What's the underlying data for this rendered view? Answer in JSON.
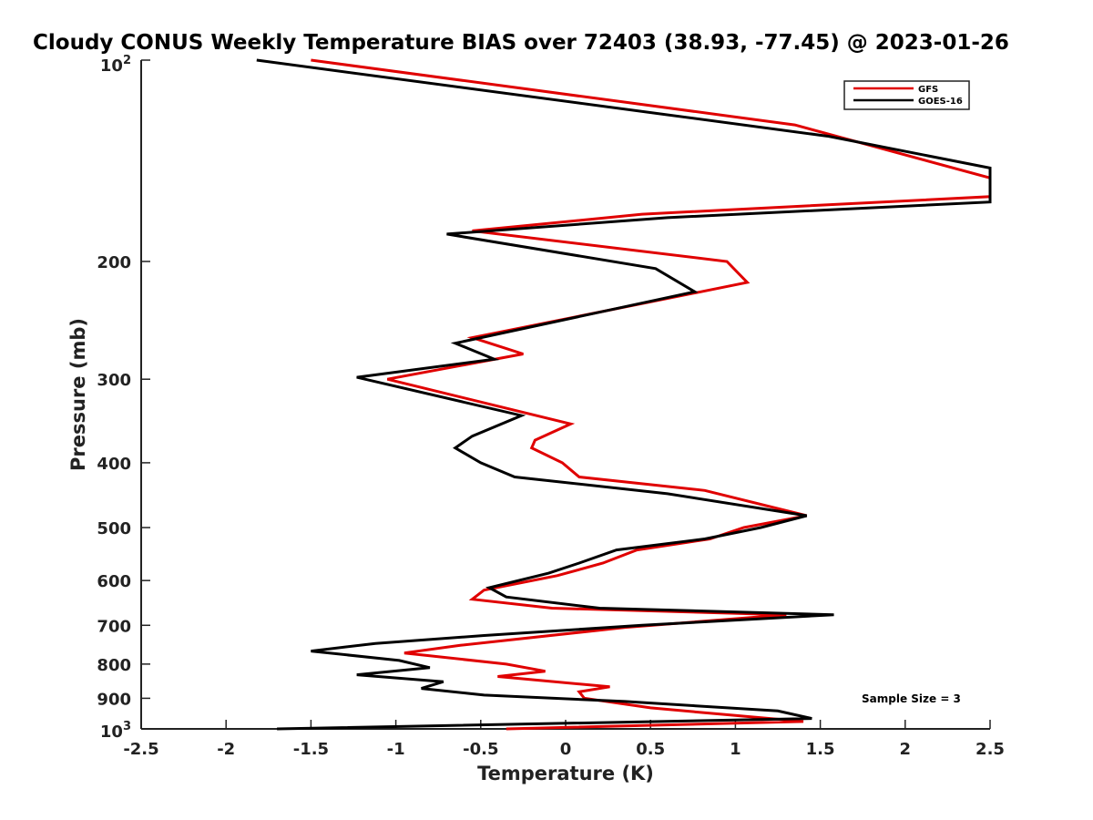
{
  "chart_data": {
    "type": "line",
    "title": "Cloudy CONUS Weekly Temperature BIAS over 72403 (38.93, -77.45) @ 2023-01-26",
    "xlabel": "Temperature (K)",
    "ylabel": "Pressure (mb)",
    "xlim": [
      -2.5,
      2.5
    ],
    "ylim": [
      100,
      1000
    ],
    "y_scale": "log",
    "y_reversed": true,
    "x_ticks": [
      "-2.5",
      "-2",
      "-1.5",
      "-1",
      "-0.5",
      "0",
      "0.5",
      "1",
      "1.5",
      "2",
      "2.5"
    ],
    "y_ticks": [
      {
        "value": 200,
        "label": "200"
      },
      {
        "value": 300,
        "label": "300"
      },
      {
        "value": 400,
        "label": "400"
      },
      {
        "value": 500,
        "label": "500"
      },
      {
        "value": 600,
        "label": "600"
      },
      {
        "value": 700,
        "label": "700"
      },
      {
        "value": 800,
        "label": "800"
      },
      {
        "value": 900,
        "label": "900"
      }
    ],
    "y_tick_top": {
      "base": "10",
      "exp": "2"
    },
    "y_tick_bottom": {
      "base": "10",
      "exp": "3"
    },
    "grid": false,
    "legend_position": "top-right",
    "annotation": "Sample Size = 3",
    "series": [
      {
        "name": "GFS",
        "color": "#e00000",
        "points": [
          [
            -1.5,
            100
          ],
          [
            1.35,
            125
          ],
          [
            2.5,
            150
          ],
          [
            2.5,
            160
          ],
          [
            0.45,
            170
          ],
          [
            -0.55,
            180
          ],
          [
            0.95,
            200
          ],
          [
            1.07,
            215
          ],
          [
            -0.55,
            260
          ],
          [
            -0.25,
            275
          ],
          [
            -1.05,
            300
          ],
          [
            0.03,
            350
          ],
          [
            -0.18,
            370
          ],
          [
            -0.2,
            380
          ],
          [
            -0.02,
            400
          ],
          [
            0.08,
            420
          ],
          [
            0.82,
            440
          ],
          [
            1.42,
            480
          ],
          [
            1.05,
            500
          ],
          [
            0.85,
            520
          ],
          [
            0.42,
            540
          ],
          [
            0.22,
            565
          ],
          [
            -0.05,
            590
          ],
          [
            -0.48,
            620
          ],
          [
            -0.55,
            640
          ],
          [
            -0.08,
            660
          ],
          [
            1.3,
            675
          ],
          [
            0.35,
            705
          ],
          [
            -0.62,
            750
          ],
          [
            -0.95,
            770
          ],
          [
            -0.35,
            800
          ],
          [
            -0.12,
            820
          ],
          [
            -0.4,
            835
          ],
          [
            0.26,
            865
          ],
          [
            0.08,
            880
          ],
          [
            0.11,
            900
          ],
          [
            0.5,
            930
          ],
          [
            1.0,
            955
          ],
          [
            1.4,
            975
          ],
          [
            -0.35,
            1000
          ]
        ]
      },
      {
        "name": "GOES-16",
        "color": "#000000",
        "points": [
          [
            -1.82,
            100
          ],
          [
            1.55,
            130
          ],
          [
            2.5,
            145
          ],
          [
            2.5,
            163
          ],
          [
            0.6,
            172
          ],
          [
            -0.7,
            182
          ],
          [
            0.53,
            205
          ],
          [
            0.76,
            222
          ],
          [
            -0.65,
            265
          ],
          [
            -0.42,
            280
          ],
          [
            -1.23,
            298
          ],
          [
            -0.26,
            340
          ],
          [
            -0.55,
            365
          ],
          [
            -0.65,
            380
          ],
          [
            -0.5,
            400
          ],
          [
            -0.3,
            420
          ],
          [
            0.6,
            445
          ],
          [
            1.42,
            480
          ],
          [
            1.15,
            500
          ],
          [
            0.82,
            520
          ],
          [
            0.3,
            540
          ],
          [
            0.08,
            565
          ],
          [
            -0.1,
            585
          ],
          [
            -0.45,
            615
          ],
          [
            -0.35,
            635
          ],
          [
            0.2,
            660
          ],
          [
            1.58,
            675
          ],
          [
            0.45,
            700
          ],
          [
            -0.48,
            725
          ],
          [
            -1.12,
            745
          ],
          [
            -1.5,
            765
          ],
          [
            -0.98,
            790
          ],
          [
            -0.8,
            810
          ],
          [
            -1.23,
            830
          ],
          [
            -0.72,
            850
          ],
          [
            -0.85,
            870
          ],
          [
            -0.48,
            890
          ],
          [
            0.35,
            910
          ],
          [
            1.25,
            940
          ],
          [
            1.45,
            965
          ],
          [
            -1.7,
            1000
          ]
        ]
      }
    ]
  }
}
